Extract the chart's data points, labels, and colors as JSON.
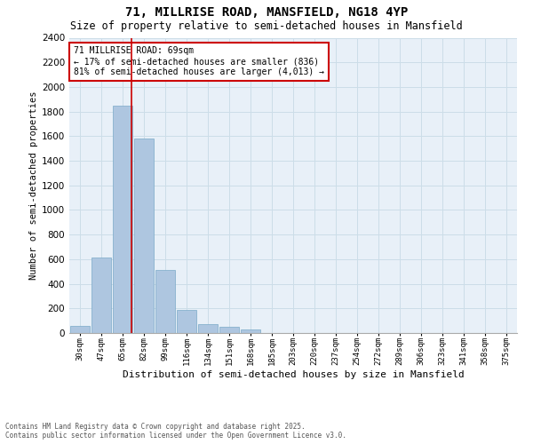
{
  "title_line1": "71, MILLRISE ROAD, MANSFIELD, NG18 4YP",
  "title_line2": "Size of property relative to semi-detached houses in Mansfield",
  "xlabel": "Distribution of semi-detached houses by size in Mansfield",
  "ylabel": "Number of semi-detached properties",
  "categories": [
    "30sqm",
    "47sqm",
    "65sqm",
    "82sqm",
    "99sqm",
    "116sqm",
    "134sqm",
    "151sqm",
    "168sqm",
    "185sqm",
    "203sqm",
    "220sqm",
    "237sqm",
    "254sqm",
    "272sqm",
    "289sqm",
    "306sqm",
    "323sqm",
    "341sqm",
    "358sqm",
    "375sqm"
  ],
  "values": [
    60,
    610,
    1850,
    1580,
    510,
    190,
    75,
    50,
    30,
    0,
    0,
    0,
    0,
    0,
    0,
    0,
    0,
    0,
    0,
    0,
    0
  ],
  "bar_color": "#aec6e0",
  "bar_edge_color": "#7aaac8",
  "grid_color": "#ccdde8",
  "bg_color": "#e8f0f8",
  "vline_color": "#cc0000",
  "vline_x": 2.43,
  "annotation_title": "71 MILLRISE ROAD: 69sqm",
  "annotation_line1": "← 17% of semi-detached houses are smaller (836)",
  "annotation_line2": "81% of semi-detached houses are larger (4,013) →",
  "annotation_box_color": "#cc0000",
  "footer_line1": "Contains HM Land Registry data © Crown copyright and database right 2025.",
  "footer_line2": "Contains public sector information licensed under the Open Government Licence v3.0.",
  "ylim": [
    0,
    2400
  ],
  "yticks": [
    0,
    200,
    400,
    600,
    800,
    1000,
    1200,
    1400,
    1600,
    1800,
    2000,
    2200,
    2400
  ],
  "title1_fontsize": 10,
  "title2_fontsize": 8.5,
  "ylabel_fontsize": 7.5,
  "xlabel_fontsize": 8,
  "xtick_fontsize": 6.5,
  "ytick_fontsize": 7.5,
  "annot_fontsize": 7,
  "footer_fontsize": 5.5
}
